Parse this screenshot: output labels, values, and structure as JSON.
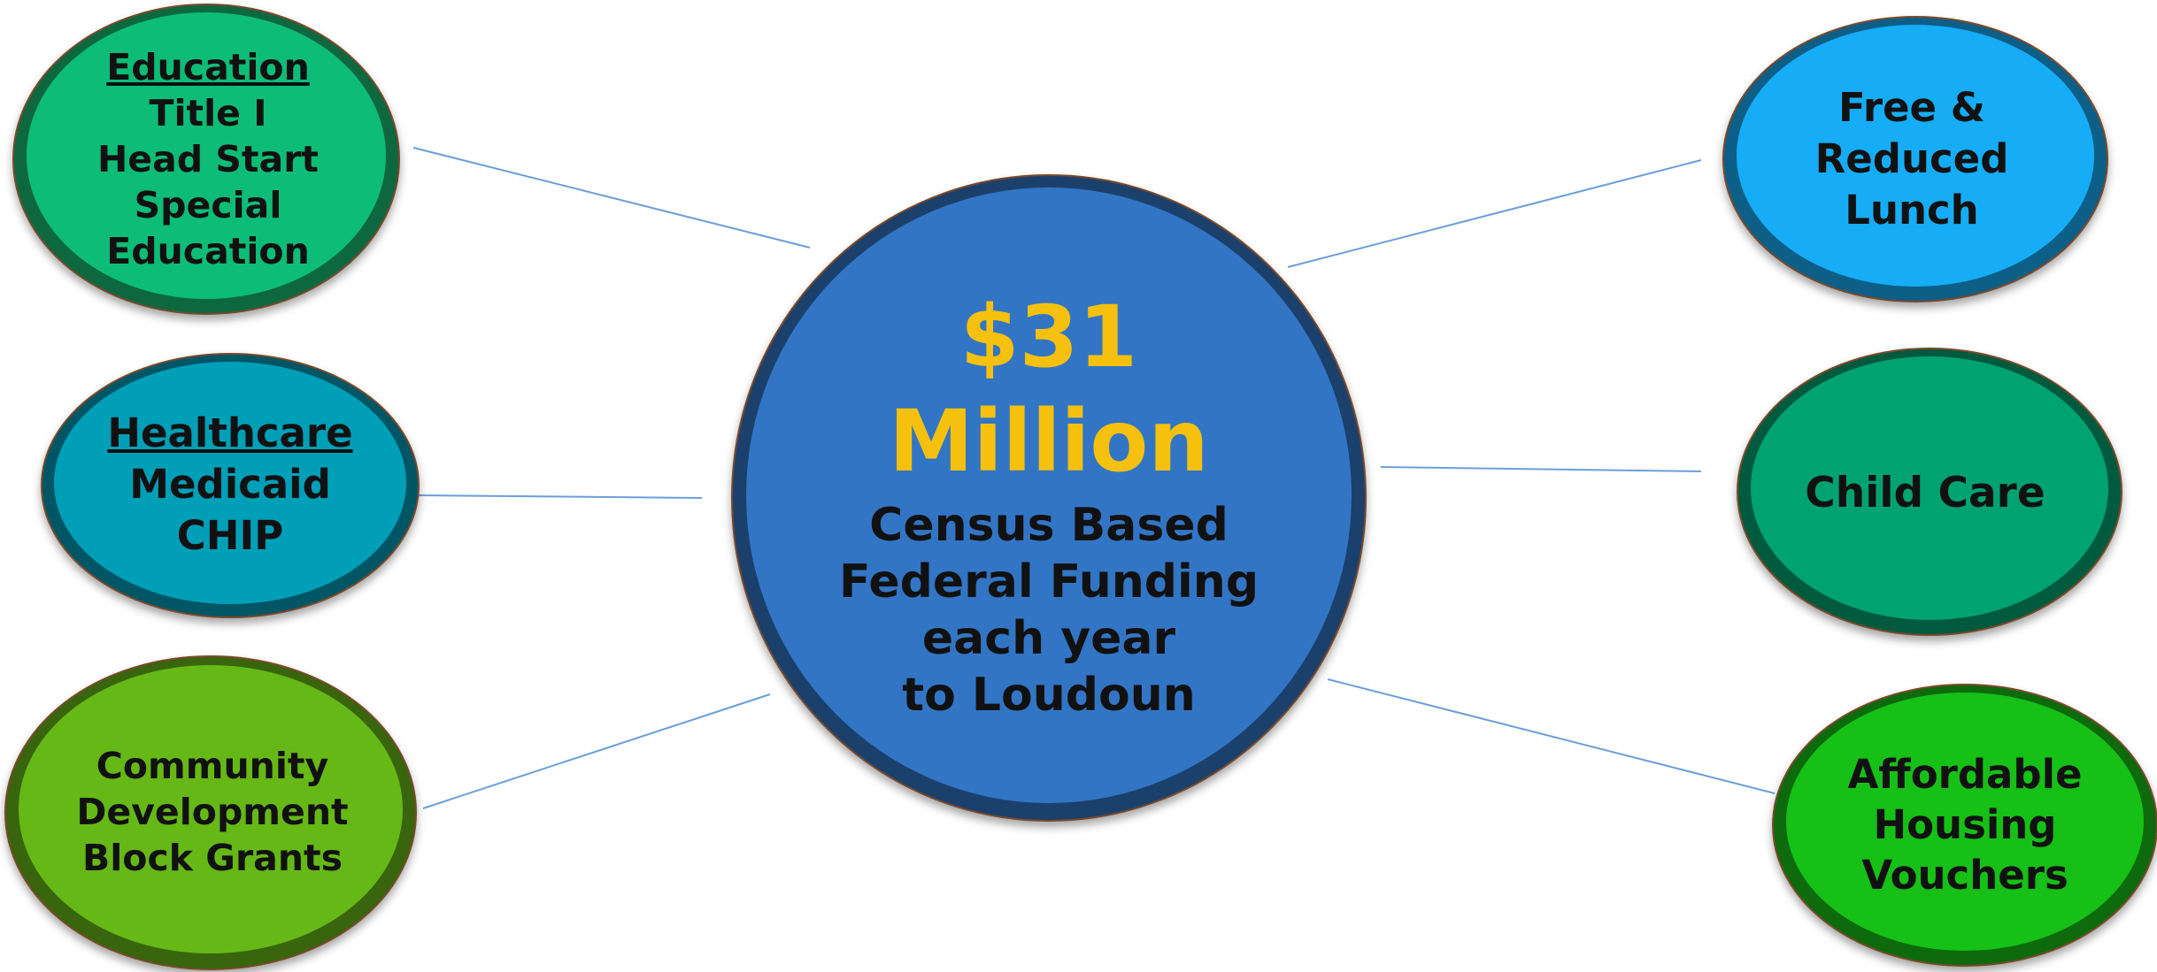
{
  "colors": {
    "center": "#3374c4",
    "amount": "#f5c10e",
    "education": "#0ebd77",
    "healthcare": "#069fb8",
    "community": "#66b818",
    "lunch": "#14adf6",
    "childcare": "#06a370",
    "housing": "#12c018",
    "connector": "#6a9fd8"
  },
  "center": {
    "amount_line1": "$31",
    "amount_line2": "Million",
    "caption_line1": "Census Based",
    "caption_line2": "Federal Funding",
    "caption_line3": "each year",
    "caption_line4": "to Loudoun"
  },
  "education": {
    "heading": "Education",
    "items": [
      "Title I",
      "Head Start",
      "Special",
      "Education"
    ]
  },
  "healthcare": {
    "heading": "Healthcare",
    "items": [
      "Medicaid",
      "CHIP"
    ]
  },
  "community": {
    "lines": [
      "Community",
      "Development",
      "Block Grants"
    ]
  },
  "lunch": {
    "lines": [
      "Free &",
      "Reduced",
      "Lunch"
    ]
  },
  "childcare": {
    "label": "Child Care"
  },
  "housing": {
    "lines": [
      "Affordable",
      "Housing",
      "Vouchers"
    ]
  }
}
